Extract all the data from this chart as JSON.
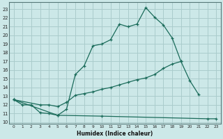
{
  "xlabel": "Humidex (Indice chaleur)",
  "bg_color": "#cce8e8",
  "grid_color": "#aacccc",
  "line_color": "#1a6b5a",
  "xlim": [
    -0.5,
    23.5
  ],
  "ylim": [
    9.8,
    23.8
  ],
  "yticks": [
    10,
    11,
    12,
    13,
    14,
    15,
    16,
    17,
    18,
    19,
    20,
    21,
    22,
    23
  ],
  "xticks": [
    0,
    1,
    2,
    3,
    4,
    5,
    6,
    7,
    8,
    9,
    10,
    11,
    12,
    13,
    14,
    15,
    16,
    17,
    18,
    19,
    20,
    21,
    22,
    23
  ],
  "line1_x": [
    0,
    1,
    2,
    3,
    4,
    5,
    6,
    7,
    8,
    9,
    10,
    11,
    12,
    13,
    14,
    15,
    16,
    17,
    18,
    19
  ],
  "line1_y": [
    12.6,
    12.0,
    12.0,
    11.1,
    11.0,
    10.8,
    11.5,
    15.5,
    16.5,
    18.8,
    19.0,
    19.5,
    21.3,
    21.0,
    21.3,
    23.2,
    22.1,
    21.2,
    19.7,
    17.0
  ],
  "line2_x": [
    0,
    3,
    4,
    5,
    6,
    7,
    8,
    9,
    10,
    11,
    12,
    13,
    14,
    15,
    16,
    17,
    18,
    19,
    20,
    21
  ],
  "line2_y": [
    12.6,
    12.0,
    12.0,
    11.8,
    12.3,
    13.1,
    13.3,
    13.5,
    13.8,
    14.0,
    14.3,
    14.6,
    14.9,
    15.1,
    15.5,
    16.2,
    16.7,
    17.0,
    14.8,
    13.2
  ],
  "line3_x": [
    0,
    5,
    10,
    22,
    23
  ],
  "line3_y": [
    12.6,
    10.8,
    10.7,
    10.4,
    10.4
  ]
}
